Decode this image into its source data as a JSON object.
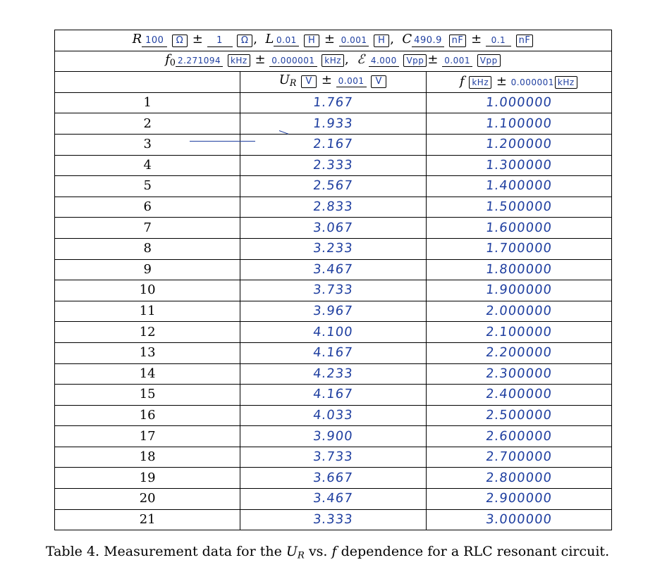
{
  "header_row1": {
    "R_symbol": "R",
    "R_value": "100",
    "R_unit": "Ω",
    "R_unc": "1",
    "R_unc_unit": "Ω",
    "L_symbol": "L",
    "L_value": "0.01",
    "L_unit": "H",
    "L_unc": "0.001",
    "L_unc_unit": "H",
    "C_symbol": "C",
    "C_value": "490.9",
    "C_unit": "nF",
    "C_unc": "0.1",
    "C_unc_unit": "nF"
  },
  "header_row2": {
    "f0_symbol": "f",
    "f0_sub": "0",
    "f0_value": "2.271094",
    "f0_unit": "kHz",
    "f0_unc": "0.000001",
    "f0_unc_unit": "kHz",
    "E_symbol": "ℰ",
    "E_value": "4.000",
    "E_unit": "Vpp",
    "E_unc": "0.001",
    "E_unc_unit": "Vpp"
  },
  "header_row3": {
    "ur_symbol": "U",
    "ur_sub": "R",
    "ur_unit": "V",
    "ur_unc": "0.001",
    "ur_unc_unit": "V",
    "f_symbol": "f",
    "f_unit": "kHz",
    "f_unc": "0.000001",
    "f_unc_unit": "kHz"
  },
  "rows": [
    {
      "n": "1",
      "ur": "1.767",
      "f": "1.000000"
    },
    {
      "n": "2",
      "ur": "1.933",
      "f": "1.100000"
    },
    {
      "n": "3",
      "ur": "2.167",
      "f": "1.200000"
    },
    {
      "n": "4",
      "ur": "2.333",
      "f": "1.300000"
    },
    {
      "n": "5",
      "ur": "2.567",
      "f": "1.400000"
    },
    {
      "n": "6",
      "ur": "2.833",
      "f": "1.500000"
    },
    {
      "n": "7",
      "ur": "3.067",
      "f": "1.600000"
    },
    {
      "n": "8",
      "ur": "3.233",
      "f": "1.700000"
    },
    {
      "n": "9",
      "ur": "3.467",
      "f": "1.800000"
    },
    {
      "n": "10",
      "ur": "3.733",
      "f": "1.900000"
    },
    {
      "n": "11",
      "ur": "3.967",
      "f": "2.000000"
    },
    {
      "n": "12",
      "ur": "4.100",
      "f": "2.100000"
    },
    {
      "n": "13",
      "ur": "4.167",
      "f": "2.200000"
    },
    {
      "n": "14",
      "ur": "4.233",
      "f": "2.300000"
    },
    {
      "n": "15",
      "ur": "4.167",
      "f": "2.400000"
    },
    {
      "n": "16",
      "ur": "4.033",
      "f": "2.500000"
    },
    {
      "n": "17",
      "ur": "3.900",
      "f": "2.600000"
    },
    {
      "n": "18",
      "ur": "3.733",
      "f": "2.700000"
    },
    {
      "n": "19",
      "ur": "3.667",
      "f": "2.800000"
    },
    {
      "n": "20",
      "ur": "3.467",
      "f": "2.900000"
    },
    {
      "n": "21",
      "ur": "3.333",
      "f": "3.000000"
    }
  ],
  "caption": {
    "prefix": "Table 4. Measurement data for the ",
    "ur_symbol": "U",
    "ur_sub": "R",
    "middle": " vs. ",
    "f_symbol": "f",
    "suffix": " dependence for a RLC resonant circuit."
  }
}
